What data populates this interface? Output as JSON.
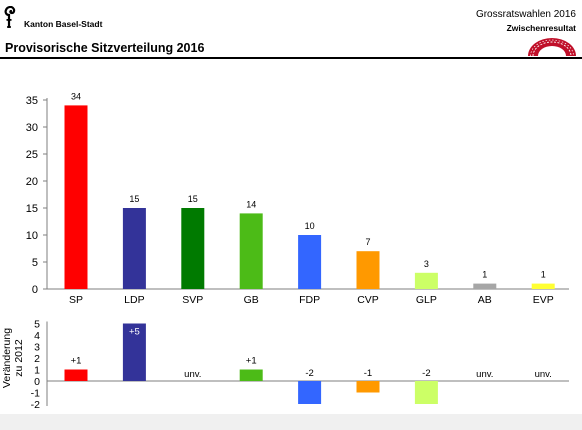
{
  "header": {
    "canton": "Kanton Basel-Stadt",
    "title": "Provisorische Sitzverteilung 2016",
    "event": "Grossratswahlen 2016",
    "status": "Zwischenresultat"
  },
  "chart_data": [
    {
      "type": "bar",
      "title": "Provisorische Sitzverteilung 2016",
      "xlabel": "",
      "ylabel": "",
      "categories": [
        "SP",
        "LDP",
        "SVP",
        "GB",
        "FDP",
        "CVP",
        "GLP",
        "AB",
        "EVP"
      ],
      "values": [
        34,
        15,
        15,
        14,
        10,
        7,
        3,
        1,
        1
      ],
      "value_labels": [
        "34",
        "15",
        "15",
        "14",
        "10",
        "7",
        "3",
        "1",
        "1"
      ],
      "colors": [
        "#ff0000",
        "#333399",
        "#007a00",
        "#4cbb17",
        "#3366ff",
        "#ff9900",
        "#ccff66",
        "#a6a6a6",
        "#ffff33"
      ],
      "ylim": [
        0,
        35
      ],
      "yticks": [
        0,
        5,
        10,
        15,
        20,
        25,
        30,
        35
      ],
      "grid": false,
      "legend": "none"
    },
    {
      "type": "bar",
      "ylabel": "Veränderung zu 2012",
      "categories": [
        "SP",
        "LDP",
        "SVP",
        "GB",
        "FDP",
        "CVP",
        "GLP",
        "AB",
        "EVP"
      ],
      "values": [
        1,
        5,
        0,
        1,
        -2,
        -1,
        -2,
        0,
        0
      ],
      "value_labels": [
        "+1",
        "+5",
        "unv.",
        "+1",
        "-2",
        "-1",
        "-2",
        "unv.",
        "unv."
      ],
      "colors": [
        "#ff0000",
        "#333399",
        "#007a00",
        "#4cbb17",
        "#3366ff",
        "#ff9900",
        "#ccff66",
        "#a6a6a6",
        "#ffff33"
      ],
      "ylim": [
        -2,
        5
      ],
      "yticks": [
        -2,
        -1,
        0,
        1,
        2,
        3,
        4,
        5
      ],
      "grid": false,
      "legend": "none"
    }
  ]
}
